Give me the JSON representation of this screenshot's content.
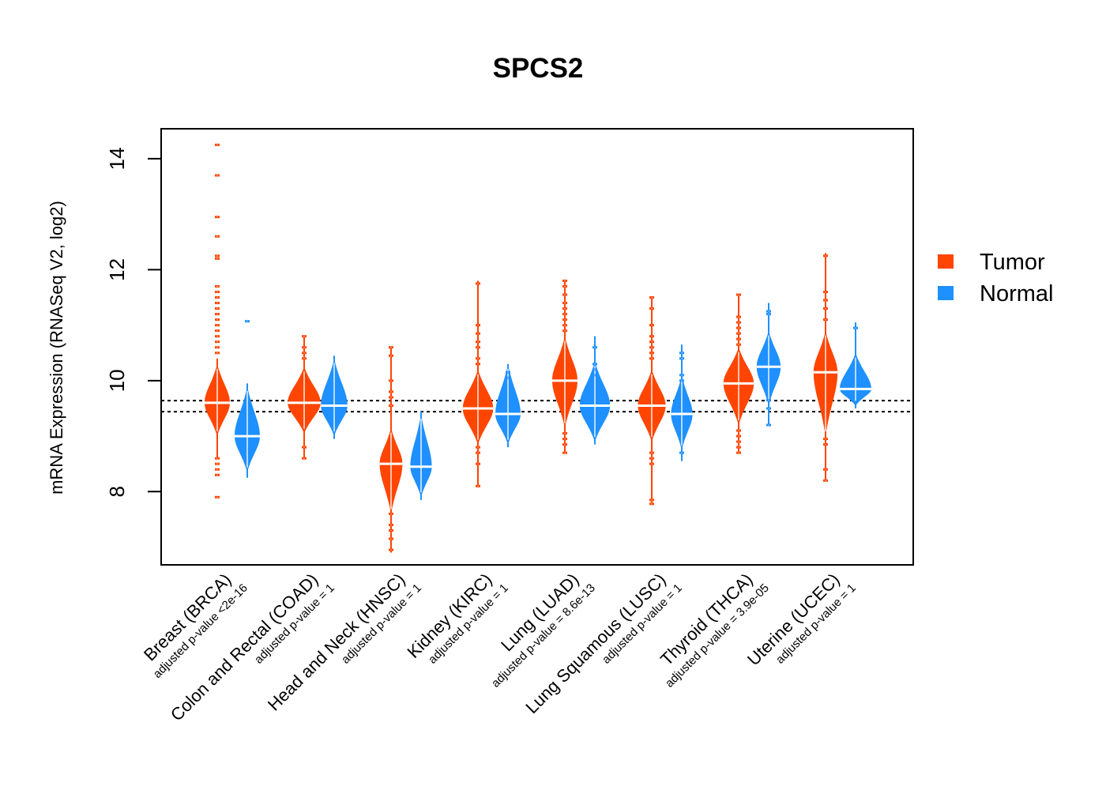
{
  "chart_data": {
    "type": "violin",
    "title": "SPCS2",
    "xlabel": "",
    "ylabel": "mRNA Expression (RNASeq V2, log2)",
    "ylim": [
      6.68,
      14.54
    ],
    "yticks": [
      8,
      10,
      12,
      14
    ],
    "ytick_labels": [
      "8",
      "10",
      "12",
      "14"
    ],
    "grid": false,
    "reference_lines": [
      9.64,
      9.44
    ],
    "legend": {
      "position": "right",
      "entries": [
        {
          "name": "Tumor",
          "color": "#FF4500"
        },
        {
          "name": "Normal",
          "color": "#1E90FF"
        }
      ]
    },
    "categories": [
      {
        "name": "Breast (BRCA)",
        "pvalue": "adjusted p-value <2e-16"
      },
      {
        "name": "Colon and Rectal (COAD)",
        "pvalue": "adjusted p-value = 1"
      },
      {
        "name": "Head and Neck (HNSC)",
        "pvalue": "adjusted p-value = 1"
      },
      {
        "name": "Kidney (KIRC)",
        "pvalue": "adjusted p-value = 1"
      },
      {
        "name": "Lung (LUAD)",
        "pvalue": "adjusted p-value = 8.6e-13"
      },
      {
        "name": "Lung Squamous (LUSC)",
        "pvalue": "adjusted p-value = 1"
      },
      {
        "name": "Thyroid (THCA)",
        "pvalue": "adjusted p-value = 3.9e-05"
      },
      {
        "name": "Uterine (UCEC)",
        "pvalue": "adjusted p-value = 1"
      }
    ],
    "series": [
      {
        "name": "Tumor",
        "color": "#FF4500",
        "violins": [
          {
            "median": 9.6,
            "body": [
              9.0,
              10.3
            ],
            "whisker": [
              8.6,
              10.4
            ],
            "width": 1.0,
            "outliers": [
              14.25,
              13.7,
              12.95,
              12.6,
              12.25,
              12.2,
              11.7,
              11.6,
              11.5,
              11.4,
              11.3,
              11.2,
              11.1,
              11.0,
              10.9,
              10.8,
              10.7,
              10.6,
              10.5,
              8.6,
              8.5,
              8.4,
              8.3,
              7.9
            ]
          },
          {
            "median": 9.6,
            "body": [
              9.05,
              10.25
            ],
            "whisker": [
              8.6,
              10.8
            ],
            "width": 1.3,
            "outliers": [
              10.8,
              10.6,
              10.5,
              10.4,
              8.8,
              8.6
            ]
          },
          {
            "median": 8.5,
            "body": [
              7.6,
              9.15
            ],
            "whisker": [
              6.9,
              10.6
            ],
            "width": 0.9,
            "outliers": [
              10.6,
              10.45,
              10.0,
              9.8,
              9.7,
              9.55,
              7.6,
              7.4,
              7.3,
              7.15,
              6.95
            ]
          },
          {
            "median": 9.5,
            "body": [
              8.85,
              10.2
            ],
            "whisker": [
              8.1,
              11.8
            ],
            "width": 1.2,
            "outliers": [
              11.75,
              11.0,
              10.85,
              10.7,
              10.6,
              10.4,
              10.3,
              8.8,
              8.7,
              8.5,
              8.1
            ]
          },
          {
            "median": 10.0,
            "body": [
              9.15,
              10.8
            ],
            "whisker": [
              8.7,
              11.8
            ],
            "width": 1.0,
            "outliers": [
              11.8,
              11.7,
              11.55,
              11.4,
              11.3,
              11.2,
              11.1,
              11.0,
              10.9,
              9.05,
              8.95,
              8.85,
              8.7
            ]
          },
          {
            "median": 9.55,
            "body": [
              8.9,
              10.2
            ],
            "whisker": [
              7.8,
              11.5
            ],
            "width": 1.1,
            "outliers": [
              11.5,
              11.3,
              11.0,
              10.8,
              10.7,
              10.6,
              10.5,
              10.4,
              8.7,
              8.6,
              8.5,
              7.85,
              7.78
            ]
          },
          {
            "median": 9.95,
            "body": [
              9.2,
              10.6
            ],
            "whisker": [
              8.7,
              11.55
            ],
            "width": 1.2,
            "outliers": [
              11.55,
              11.15,
              11.05,
              10.95,
              10.85,
              10.75,
              10.65,
              9.1,
              9.0,
              8.9,
              8.8,
              8.7
            ]
          },
          {
            "median": 10.15,
            "body": [
              9.0,
              10.9
            ],
            "whisker": [
              8.2,
              12.3
            ],
            "width": 0.95,
            "outliers": [
              12.25,
              11.6,
              11.45,
              11.3,
              11.1,
              8.95,
              8.85,
              8.4,
              8.2
            ]
          }
        ]
      },
      {
        "name": "Normal",
        "color": "#1E90FF",
        "violins": [
          {
            "median": 9.0,
            "body": [
              8.35,
              9.9
            ],
            "whisker": [
              8.25,
              9.95
            ],
            "width": 1.0,
            "outliers": [
              11.07
            ]
          },
          {
            "median": 9.55,
            "body": [
              9.0,
              10.4
            ],
            "whisker": [
              8.95,
              10.45
            ],
            "width": 1.05,
            "outliers": []
          },
          {
            "median": 8.45,
            "body": [
              7.9,
              9.4
            ],
            "whisker": [
              7.85,
              9.45
            ],
            "width": 0.85,
            "outliers": []
          },
          {
            "median": 9.4,
            "body": [
              8.85,
              10.3
            ],
            "whisker": [
              8.8,
              10.3
            ],
            "width": 1.0,
            "outliers": [
              10.15,
              10.05
            ]
          },
          {
            "median": 9.55,
            "body": [
              8.9,
              10.35
            ],
            "whisker": [
              8.85,
              10.8
            ],
            "width": 1.2,
            "outliers": [
              10.6,
              10.3,
              10.2,
              10.1
            ]
          },
          {
            "median": 9.4,
            "body": [
              8.75,
              10.1
            ],
            "whisker": [
              8.55,
              10.65
            ],
            "width": 0.85,
            "outliers": [
              10.5,
              10.4,
              10.1,
              10.0,
              8.7
            ]
          },
          {
            "median": 10.25,
            "body": [
              9.55,
              10.9
            ],
            "whisker": [
              9.2,
              11.4
            ],
            "width": 0.95,
            "outliers": [
              11.25,
              11.2,
              9.65,
              9.5,
              9.2
            ]
          },
          {
            "median": 9.85,
            "body": [
              9.55,
              10.5
            ],
            "whisker": [
              9.5,
              11.05
            ],
            "width": 1.25,
            "outliers": [
              10.95
            ]
          }
        ]
      }
    ]
  }
}
